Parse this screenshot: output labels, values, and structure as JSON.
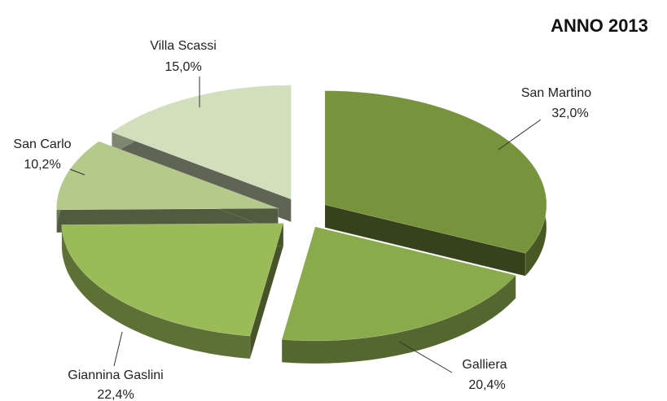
{
  "chart_data": {
    "type": "pie",
    "title": "ANNO 2013",
    "categories": [
      "San Martino",
      "Galliera",
      "Giannina Gaslini",
      "San Carlo",
      "Villa Scassi"
    ],
    "values": [
      32.0,
      20.4,
      22.4,
      10.2,
      15.0
    ],
    "value_labels": [
      "32,0%",
      "20,4%",
      "22,4%",
      "10,2%",
      "15,0%"
    ],
    "colors": [
      "#77933c",
      "#8aab4c",
      "#9bbb59",
      "#b3ca8a",
      "#d2dfbc"
    ]
  }
}
